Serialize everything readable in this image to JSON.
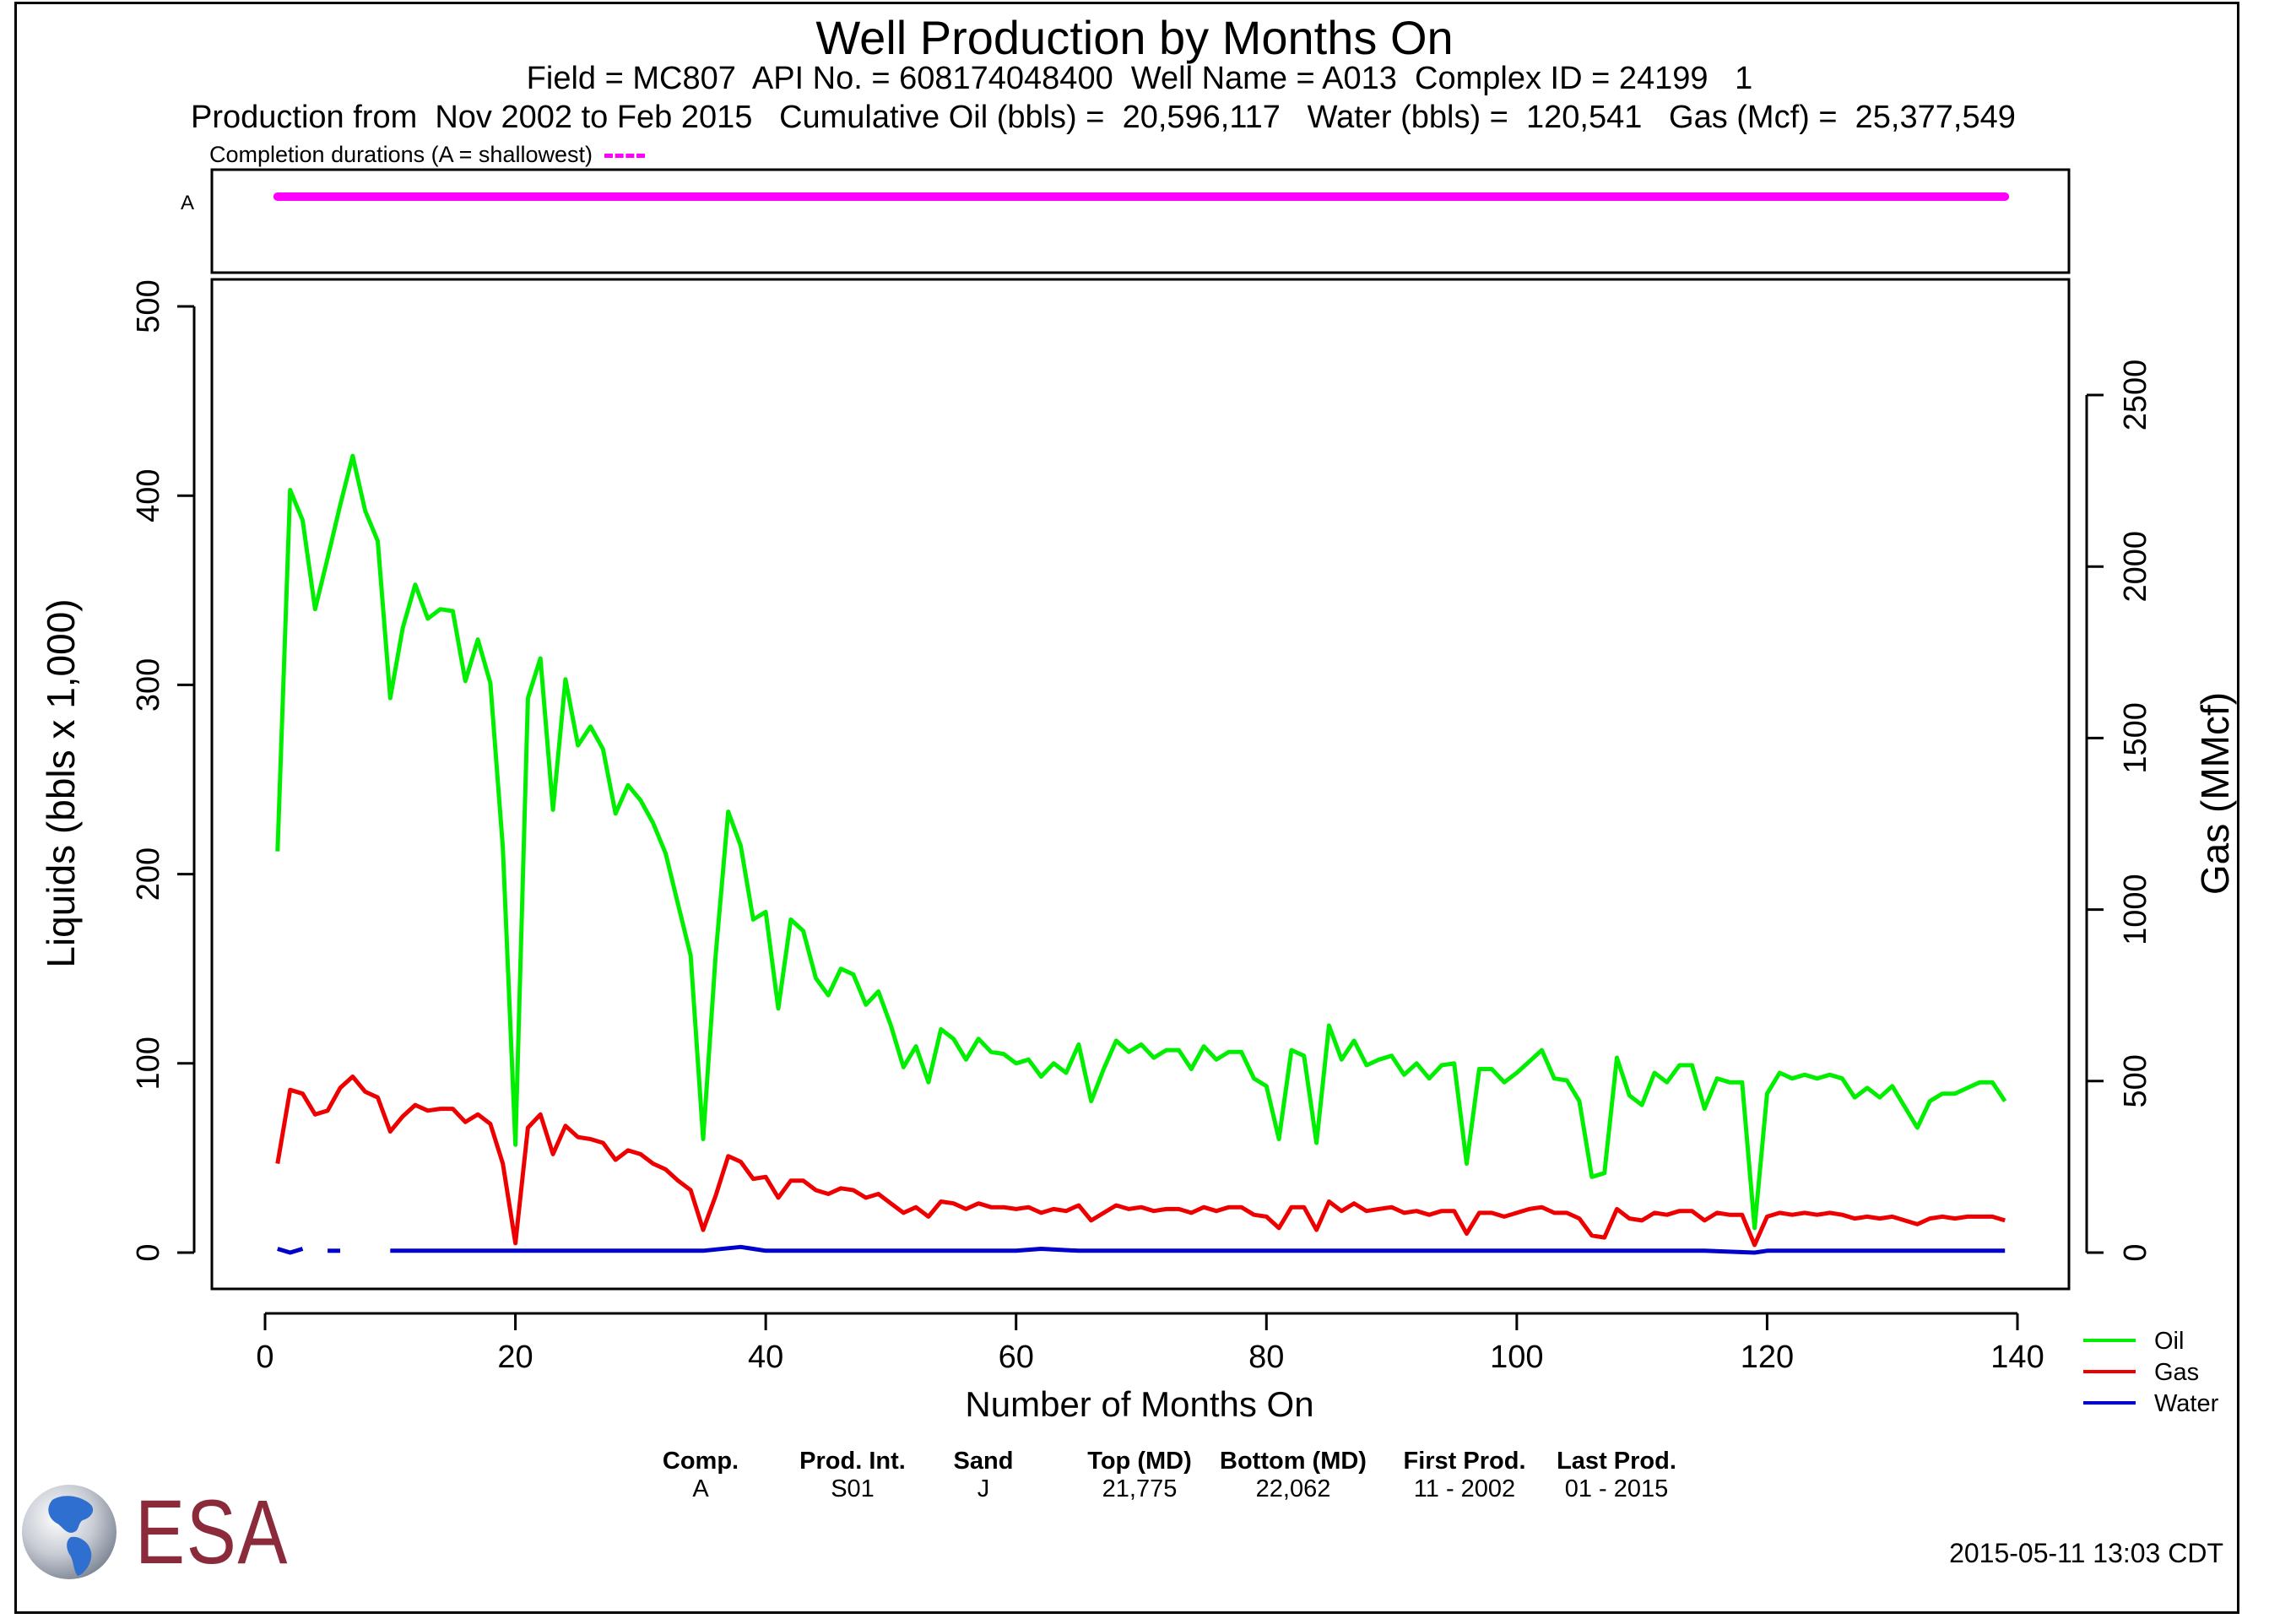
{
  "header": {
    "title": "Well Production by Months On",
    "subtitle1": "Field = MC807  API No. = 608174048400  Well Name = A013  Complex ID = 24199   1",
    "subtitle2": "Production from  Nov 2002 to Feb 2015   Cumulative Oil (bbls) =  20,596,117   Water (bbls) =  120,541   Gas (Mcf) =  25,377,549",
    "completion_label": "Completion durations (A = shallowest)",
    "completion_color": "#ff00ff"
  },
  "completion_panel": {
    "rows": [
      {
        "label": "A",
        "start_month": 1,
        "end_month": 139
      }
    ]
  },
  "chart_data": {
    "type": "line",
    "xlabel": "Number of Months On",
    "ylabel": "Liquids (bbls x 1,000)",
    "ylabel_right": "Gas (MMcf)",
    "xlim": [
      0,
      140
    ],
    "ylim_left": [
      0,
      500
    ],
    "ylim_right": [
      0,
      2500
    ],
    "x_ticks": [
      0,
      20,
      40,
      60,
      80,
      100,
      120,
      140
    ],
    "y_ticks_left": [
      0,
      100,
      200,
      300,
      400,
      500
    ],
    "y_ticks_right": [
      0,
      500,
      1000,
      1500,
      2000,
      2500
    ],
    "legend_position": "bottom-right, outside plot",
    "series": [
      {
        "name": "Oil",
        "axis": "left",
        "color": "#00ee00",
        "x": [
          1,
          2,
          3,
          4,
          5,
          6,
          7,
          8,
          9,
          10,
          11,
          12,
          13,
          14,
          15,
          16,
          17,
          18,
          19,
          20,
          21,
          22,
          23,
          24,
          25,
          26,
          27,
          28,
          29,
          30,
          31,
          32,
          33,
          34,
          35,
          36,
          37,
          38,
          39,
          40,
          41,
          42,
          43,
          44,
          45,
          46,
          47,
          48,
          49,
          50,
          51,
          52,
          53,
          54,
          55,
          56,
          57,
          58,
          59,
          60,
          61,
          62,
          63,
          64,
          65,
          66,
          67,
          68,
          69,
          70,
          71,
          72,
          73,
          74,
          75,
          76,
          77,
          78,
          79,
          80,
          81,
          82,
          83,
          84,
          85,
          86,
          87,
          88,
          89,
          90,
          91,
          92,
          93,
          94,
          95,
          96,
          97,
          98,
          99,
          100,
          101,
          102,
          103,
          104,
          105,
          106,
          107,
          108,
          109,
          110,
          111,
          112,
          113,
          114,
          115,
          116,
          117,
          118,
          119,
          120,
          121,
          122,
          123,
          124,
          125,
          126,
          127,
          128,
          129,
          130,
          131,
          132,
          133,
          134,
          135,
          136,
          137,
          138,
          139
        ],
        "values": [
          212,
          403,
          387,
          340,
          367,
          395,
          421,
          392,
          376,
          293,
          330,
          353,
          335,
          340,
          339,
          302,
          324,
          301,
          214,
          57,
          293,
          314,
          234,
          303,
          268,
          278,
          266,
          232,
          247,
          239,
          227,
          211,
          184,
          157,
          60,
          157,
          233,
          215,
          176,
          180,
          129,
          176,
          170,
          145,
          136,
          150,
          147,
          131,
          138,
          120,
          98,
          109,
          90,
          118,
          113,
          102,
          113,
          106,
          105,
          100,
          102,
          93,
          100,
          95,
          110,
          80,
          97,
          112,
          106,
          110,
          103,
          107,
          107,
          97,
          109,
          102,
          106,
          106,
          92,
          88,
          60,
          107,
          104,
          58,
          120,
          102,
          112,
          99,
          102,
          104,
          94,
          100,
          92,
          99,
          100,
          47,
          97,
          97,
          90,
          95,
          101,
          107,
          92,
          91,
          80,
          40,
          42,
          103,
          83,
          78,
          95,
          90,
          99,
          99,
          76,
          92,
          90,
          90,
          13,
          84,
          95,
          92,
          94,
          92,
          94,
          92,
          82,
          87,
          82,
          88,
          77,
          66,
          80,
          84,
          84,
          87,
          90,
          90,
          80
        ]
      },
      {
        "name": "Gas",
        "axis": "left",
        "color": "#ee0000",
        "x": [
          1,
          2,
          3,
          4,
          5,
          6,
          7,
          8,
          9,
          10,
          11,
          12,
          13,
          14,
          15,
          16,
          17,
          18,
          19,
          20,
          21,
          22,
          23,
          24,
          25,
          26,
          27,
          28,
          29,
          30,
          31,
          32,
          33,
          34,
          35,
          36,
          37,
          38,
          39,
          40,
          41,
          42,
          43,
          44,
          45,
          46,
          47,
          48,
          49,
          50,
          51,
          52,
          53,
          54,
          55,
          56,
          57,
          58,
          59,
          60,
          61,
          62,
          63,
          64,
          65,
          66,
          67,
          68,
          69,
          70,
          71,
          72,
          73,
          74,
          75,
          76,
          77,
          78,
          79,
          80,
          81,
          82,
          83,
          84,
          85,
          86,
          87,
          88,
          89,
          90,
          91,
          92,
          93,
          94,
          95,
          96,
          97,
          98,
          99,
          100,
          101,
          102,
          103,
          104,
          105,
          106,
          107,
          108,
          109,
          110,
          111,
          112,
          113,
          114,
          115,
          116,
          117,
          118,
          119,
          120,
          121,
          122,
          123,
          124,
          125,
          126,
          127,
          128,
          129,
          130,
          131,
          132,
          133,
          134,
          135,
          136,
          137,
          138,
          139
        ],
        "values": [
          47,
          86,
          84,
          73,
          75,
          87,
          93,
          85,
          82,
          64,
          72,
          78,
          75,
          76,
          76,
          69,
          73,
          68,
          47,
          5,
          66,
          73,
          52,
          67,
          61,
          60,
          58,
          49,
          54,
          52,
          47,
          44,
          38,
          33,
          12,
          30,
          51,
          48,
          39,
          40,
          29,
          38,
          38,
          33,
          31,
          34,
          33,
          29,
          31,
          26,
          21,
          24,
          19,
          27,
          26,
          23,
          26,
          24,
          24,
          23,
          24,
          21,
          23,
          22,
          25,
          17,
          21,
          25,
          23,
          24,
          22,
          23,
          23,
          21,
          24,
          22,
          24,
          24,
          20,
          19,
          13,
          24,
          24,
          12,
          27,
          22,
          26,
          22,
          23,
          24,
          21,
          22,
          20,
          22,
          22,
          10,
          21,
          21,
          19,
          21,
          23,
          24,
          21,
          21,
          18,
          9,
          8,
          23,
          18,
          17,
          21,
          20,
          22,
          22,
          17,
          21,
          20,
          20,
          4,
          19,
          21,
          20,
          21,
          20,
          21,
          20,
          18,
          19,
          18,
          19,
          17,
          15,
          18,
          19,
          18,
          19,
          19,
          19,
          17
        ]
      },
      {
        "name": "Water",
        "axis": "left",
        "color": "#0000cc",
        "segments": [
          {
            "x": [
              1,
              2,
              3
            ],
            "values": [
              2,
              0,
              2
            ]
          },
          {
            "x": [
              5,
              6
            ],
            "values": [
              1,
              1
            ]
          },
          {
            "x": [
              10,
              15,
              20,
              25,
              30,
              35,
              38,
              40,
              45,
              50,
              55,
              60,
              62,
              65,
              70,
              75,
              80,
              85,
              90,
              95,
              100,
              105,
              110,
              115,
              119,
              120,
              125,
              130,
              135,
              139
            ],
            "values": [
              1,
              1,
              1,
              1,
              1,
              1,
              3,
              1,
              1,
              1,
              1,
              1,
              2,
              1,
              1,
              1,
              1,
              1,
              1,
              1,
              1,
              1,
              1,
              1,
              0,
              1,
              1,
              1,
              1,
              1
            ]
          }
        ]
      }
    ]
  },
  "legend": [
    {
      "name": "Oil",
      "color": "#00ee00"
    },
    {
      "name": "Gas",
      "color": "#ee0000"
    },
    {
      "name": "Water",
      "color": "#0000cc"
    }
  ],
  "completion_table": {
    "headers": [
      "Comp.",
      "Prod. Int.",
      "Sand",
      "Top (MD)",
      "Bottom (MD)",
      "First Prod.",
      "Last Prod."
    ],
    "row": [
      "A",
      "S01",
      "J",
      "21,775",
      "22,062",
      "11 - 2002",
      "01 - 2015"
    ]
  },
  "logo": {
    "text": "ESA",
    "color": "#8b2a3a"
  },
  "timestamp": "2015-05-11 13:03 CDT"
}
